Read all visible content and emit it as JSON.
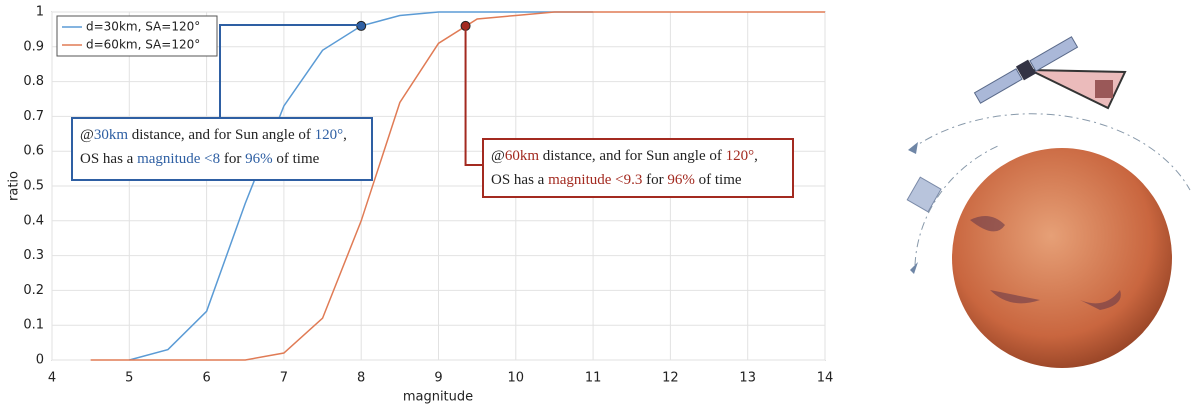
{
  "chart_data": {
    "type": "line",
    "x_label": "magnitude",
    "y_label": "ratio",
    "x": [
      4.5,
      5,
      5.5,
      6,
      6.5,
      7,
      7.5,
      8,
      8.5,
      9,
      9.5,
      10,
      10.5,
      11,
      11.5,
      12,
      12.5,
      13,
      13.5,
      14
    ],
    "series": [
      {
        "name": "d=30km, SA=120°",
        "color": "#5b9bd5",
        "values": [
          null,
          0,
          0.03,
          0.14,
          0.45,
          0.73,
          0.89,
          0.96,
          0.99,
          1,
          1,
          1,
          1,
          1,
          null,
          null,
          null,
          null,
          null,
          null
        ]
      },
      {
        "name": "d=60km, SA=120°",
        "color": "#e07b55",
        "values": [
          0,
          0,
          0,
          0,
          0,
          0.02,
          0.12,
          0.4,
          0.74,
          0.91,
          0.98,
          0.99,
          1,
          1,
          1,
          1,
          1,
          1,
          1,
          1
        ]
      }
    ],
    "xlim": [
      4,
      14
    ],
    "xticks": [
      4,
      5,
      6,
      7,
      8,
      9,
      10,
      11,
      12,
      13,
      14
    ],
    "ylim": [
      0,
      1
    ],
    "yticks": [
      0,
      0.1,
      0.2,
      0.3,
      0.4,
      0.5,
      0.6,
      0.7,
      0.8,
      0.9,
      1
    ],
    "grid": true,
    "legend": "top-left",
    "markers": [
      {
        "x": 8,
        "y": 0.96,
        "color": "#2e5fa3"
      },
      {
        "x": 9.35,
        "y": 0.96,
        "color": "#a32a20"
      }
    ],
    "annotations": [
      {
        "border": "#2e5fa3",
        "lines": [
          [
            {
              "text": "@",
              "color": "#222"
            },
            {
              "text": "30km",
              "color": "#2e5fa3"
            },
            {
              "text": " distance, and for Sun angle of ",
              "color": "#222"
            },
            {
              "text": "120°",
              "color": "#2e5fa3"
            },
            {
              "text": ",",
              "color": "#222"
            }
          ],
          [
            {
              "text": "OS has a ",
              "color": "#222"
            },
            {
              "text": "magnitude <8",
              "color": "#2e5fa3"
            },
            {
              "text": " for ",
              "color": "#222"
            },
            {
              "text": "96%",
              "color": "#2e5fa3"
            },
            {
              "text": " of time",
              "color": "#222"
            }
          ]
        ]
      },
      {
        "border": "#a32a20",
        "lines": [
          [
            {
              "text": "@",
              "color": "#222"
            },
            {
              "text": "60km",
              "color": "#a32a20"
            },
            {
              "text": " distance, and for Sun angle of ",
              "color": "#222"
            },
            {
              "text": "120°",
              "color": "#a32a20"
            },
            {
              "text": ",",
              "color": "#222"
            }
          ],
          [
            {
              "text": "OS has a ",
              "color": "#222"
            },
            {
              "text": "magnitude <9.3",
              "color": "#a32a20"
            },
            {
              "text": " for ",
              "color": "#222"
            },
            {
              "text": "96%",
              "color": "#a32a20"
            },
            {
              "text": " of time",
              "color": "#222"
            }
          ]
        ]
      }
    ]
  }
}
